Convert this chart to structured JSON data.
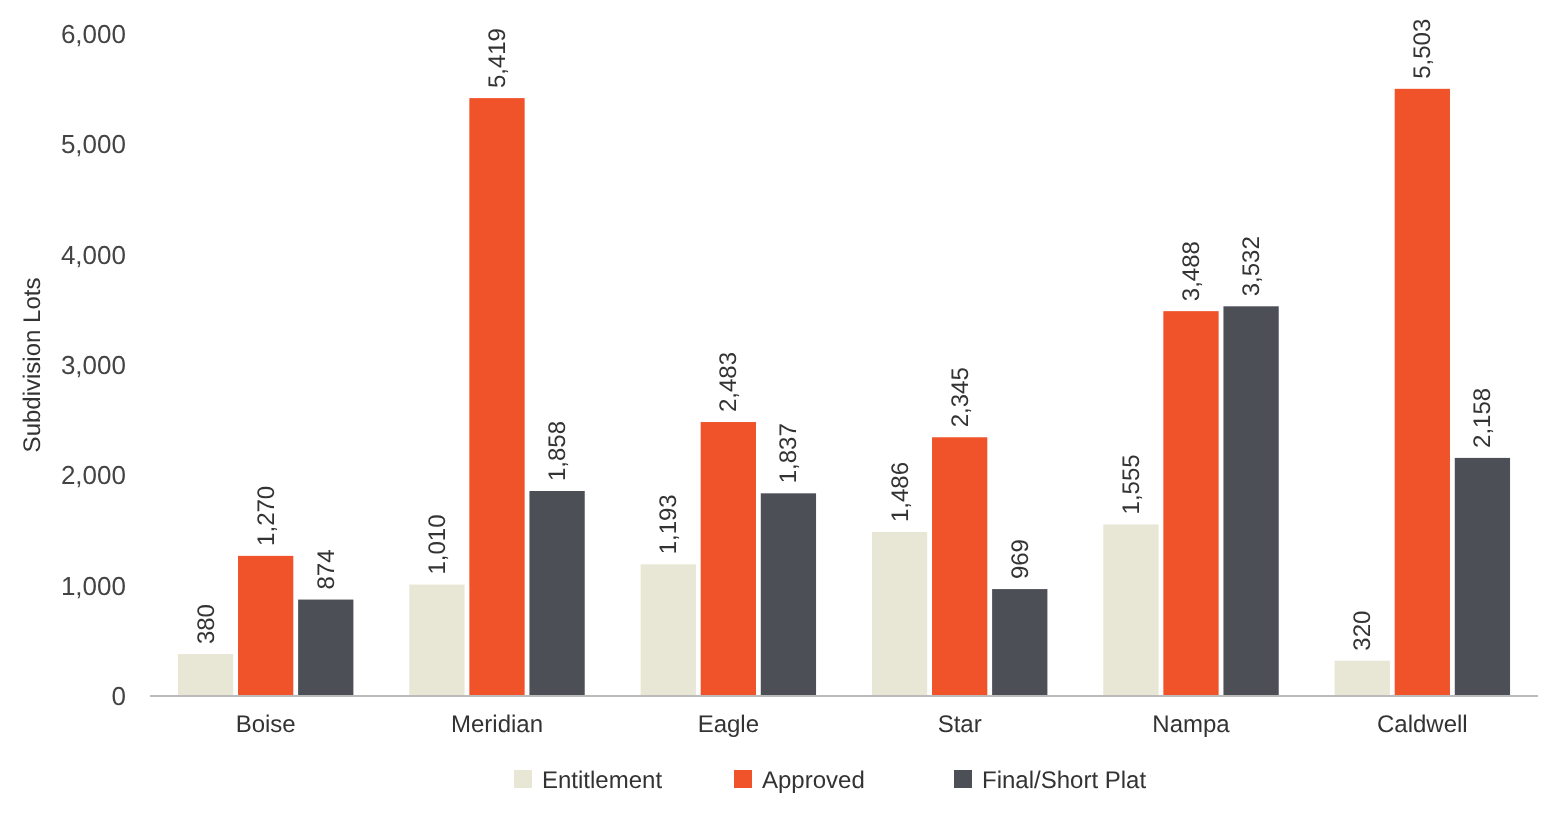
{
  "chart_data": {
    "type": "bar",
    "ylabel": "Subdivision Lots",
    "categories": [
      "Boise",
      "Meridian",
      "Eagle",
      "Star",
      "Nampa",
      "Caldwell"
    ],
    "series": [
      {
        "name": "Entitlement",
        "color": "#e8e6d5",
        "values": [
          380,
          1010,
          1193,
          1486,
          1555,
          320
        ],
        "value_labels": [
          "380",
          "1,010",
          "1,193",
          "1,486",
          "1,555",
          "320"
        ]
      },
      {
        "name": "Approved",
        "color": "#f0522a",
        "values": [
          1270,
          5419,
          2483,
          2345,
          3488,
          5503
        ],
        "value_labels": [
          "1,270",
          "5,419",
          "2,483",
          "2,345",
          "3,488",
          "5,503"
        ]
      },
      {
        "name": "Final/Short Plat",
        "color": "#4d4f57",
        "values": [
          874,
          1858,
          1837,
          969,
          3532,
          2158
        ],
        "value_labels": [
          "874",
          "1,858",
          "1,837",
          "969",
          "3,532",
          "2,158"
        ]
      }
    ],
    "ylim": [
      0,
      6000
    ],
    "yticks": [
      {
        "value": 0,
        "label": "0"
      },
      {
        "value": 1000,
        "label": "1,000"
      },
      {
        "value": 2000,
        "label": "2,000"
      },
      {
        "value": 3000,
        "label": "3,000"
      },
      {
        "value": 4000,
        "label": "4,000"
      },
      {
        "value": 5000,
        "label": "5,000"
      },
      {
        "value": 6000,
        "label": "6,000"
      }
    ],
    "grid": false,
    "legend": "bottom"
  }
}
